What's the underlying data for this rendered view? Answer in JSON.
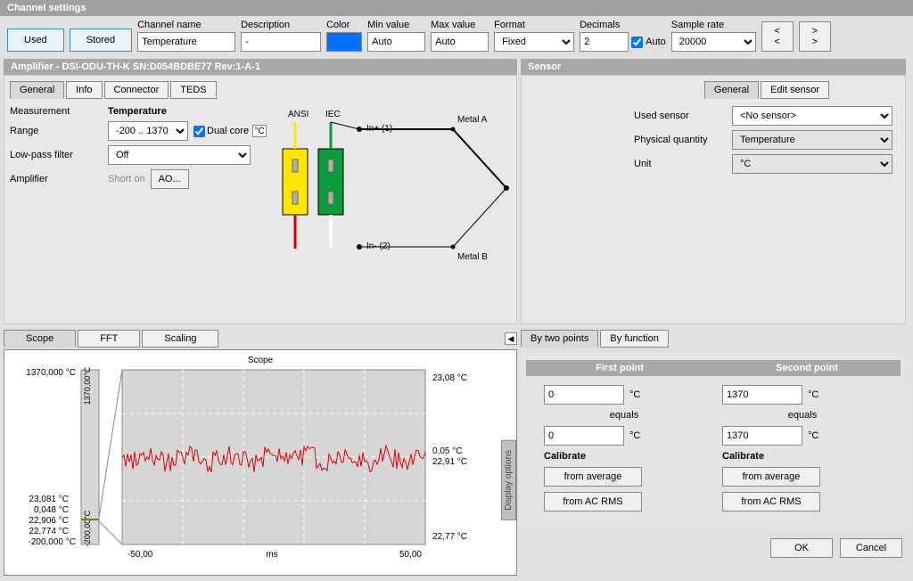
{
  "window": {
    "title": "Channel settings"
  },
  "topbar": {
    "used": "Used",
    "stored": "Stored",
    "channel_name_lbl": "Channel name",
    "channel_name": "Temperature",
    "description_lbl": "Description",
    "description": "-",
    "color_lbl": "Color",
    "color": "#0070ff",
    "min_lbl": "Min value",
    "min": "Auto",
    "max_lbl": "Max value",
    "max": "Auto",
    "format_lbl": "Format",
    "format": "Fixed",
    "decimals_lbl": "Decimals",
    "decimals": "2",
    "auto": "Auto",
    "sample_lbl": "Sample rate",
    "sample": "20000",
    "prev": "< <",
    "next": "> >"
  },
  "amplifier": {
    "title": "Amplifier - DSI-ODU-TH-K  SN:D054BDBE77 Rev:1-A-1",
    "tabs": {
      "general": "General",
      "info": "Info",
      "connector": "Connector",
      "teds": "TEDS"
    },
    "measurement_lbl": "Measurement",
    "measurement": "Temperature",
    "range_lbl": "Range",
    "range": "-200 .. 1370",
    "dualcore": "Dual core",
    "range_unit": "°C",
    "lpf_lbl": "Low-pass filter",
    "lpf": "Off",
    "amp_lbl": "Amplifier",
    "short": "Short on",
    "ao": "AO...",
    "diagram": {
      "ansi": "ANSI",
      "iec": "IEC",
      "in_plus": "In+ (1)",
      "in_minus": "In- (2)",
      "metal_a": "Metal A",
      "metal_b": "Metal B",
      "ansi_color": "#ffe600",
      "iec_color": "#0a9b3a",
      "red": "#d40000"
    }
  },
  "sensor": {
    "title": "Sensor",
    "tabs": {
      "general": "General",
      "edit": "Edit sensor"
    },
    "used_lbl": "Used sensor",
    "used": "<No sensor>",
    "qty_lbl": "Physical quantity",
    "qty": "Temperature",
    "unit_lbl": "Unit",
    "unit": "°C"
  },
  "scope": {
    "tabs": {
      "scope": "Scope",
      "fft": "FFT",
      "scaling": "Scaling"
    },
    "title": "Scope",
    "ylabels_left": [
      "23,081 °C",
      "0,048 °C",
      "22,906 °C",
      "22,774 °C"
    ],
    "ylabels_left_colors": [
      "#0050d0",
      "#b00000",
      "#606000",
      "#0050d0"
    ],
    "ylabels_right": [
      "23,08 °C",
      "0,05 °C",
      "22,91 °C",
      "22,77 °C"
    ],
    "y_top": "1370,000 °C",
    "y_bottom": "-200,000 °C",
    "x_left": "-50,00",
    "x_right": "50,00",
    "x_unit": "ms",
    "inner_top": "1370,00°C",
    "inner_bottom": "-200,00°C",
    "trace_color": "#e00000",
    "bg": "#d6d6d6",
    "grid": "#ffffff",
    "display_options": "Display options"
  },
  "calibration": {
    "tabs": {
      "two": "By two points",
      "func": "By function"
    },
    "hdr1": "First point",
    "hdr2": "Second point",
    "p1v1": "0",
    "p1u": "°C",
    "equals": "equals",
    "p1v2": "0",
    "p2v1": "1370",
    "p2v2": "1370",
    "cal_lbl": "Calibrate",
    "avg": "from average",
    "rms": "from AC RMS"
  },
  "footer": {
    "ok": "OK",
    "cancel": "Cancel"
  }
}
